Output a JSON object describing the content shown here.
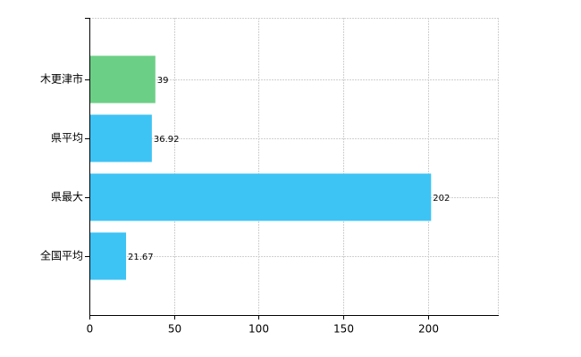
{
  "chart_data": {
    "type": "hbar",
    "categories": [
      "木更津市",
      "県平均",
      "県最大",
      "全国平均"
    ],
    "values": [
      39,
      36.92,
      202,
      21.67
    ],
    "colors": [
      "#6ccf86",
      "#3ec3f5",
      "#3ec3f5",
      "#3ec3f5"
    ],
    "xlim": [
      0,
      242
    ],
    "xticks": [
      0,
      50,
      100,
      150,
      200
    ],
    "grid": true
  }
}
